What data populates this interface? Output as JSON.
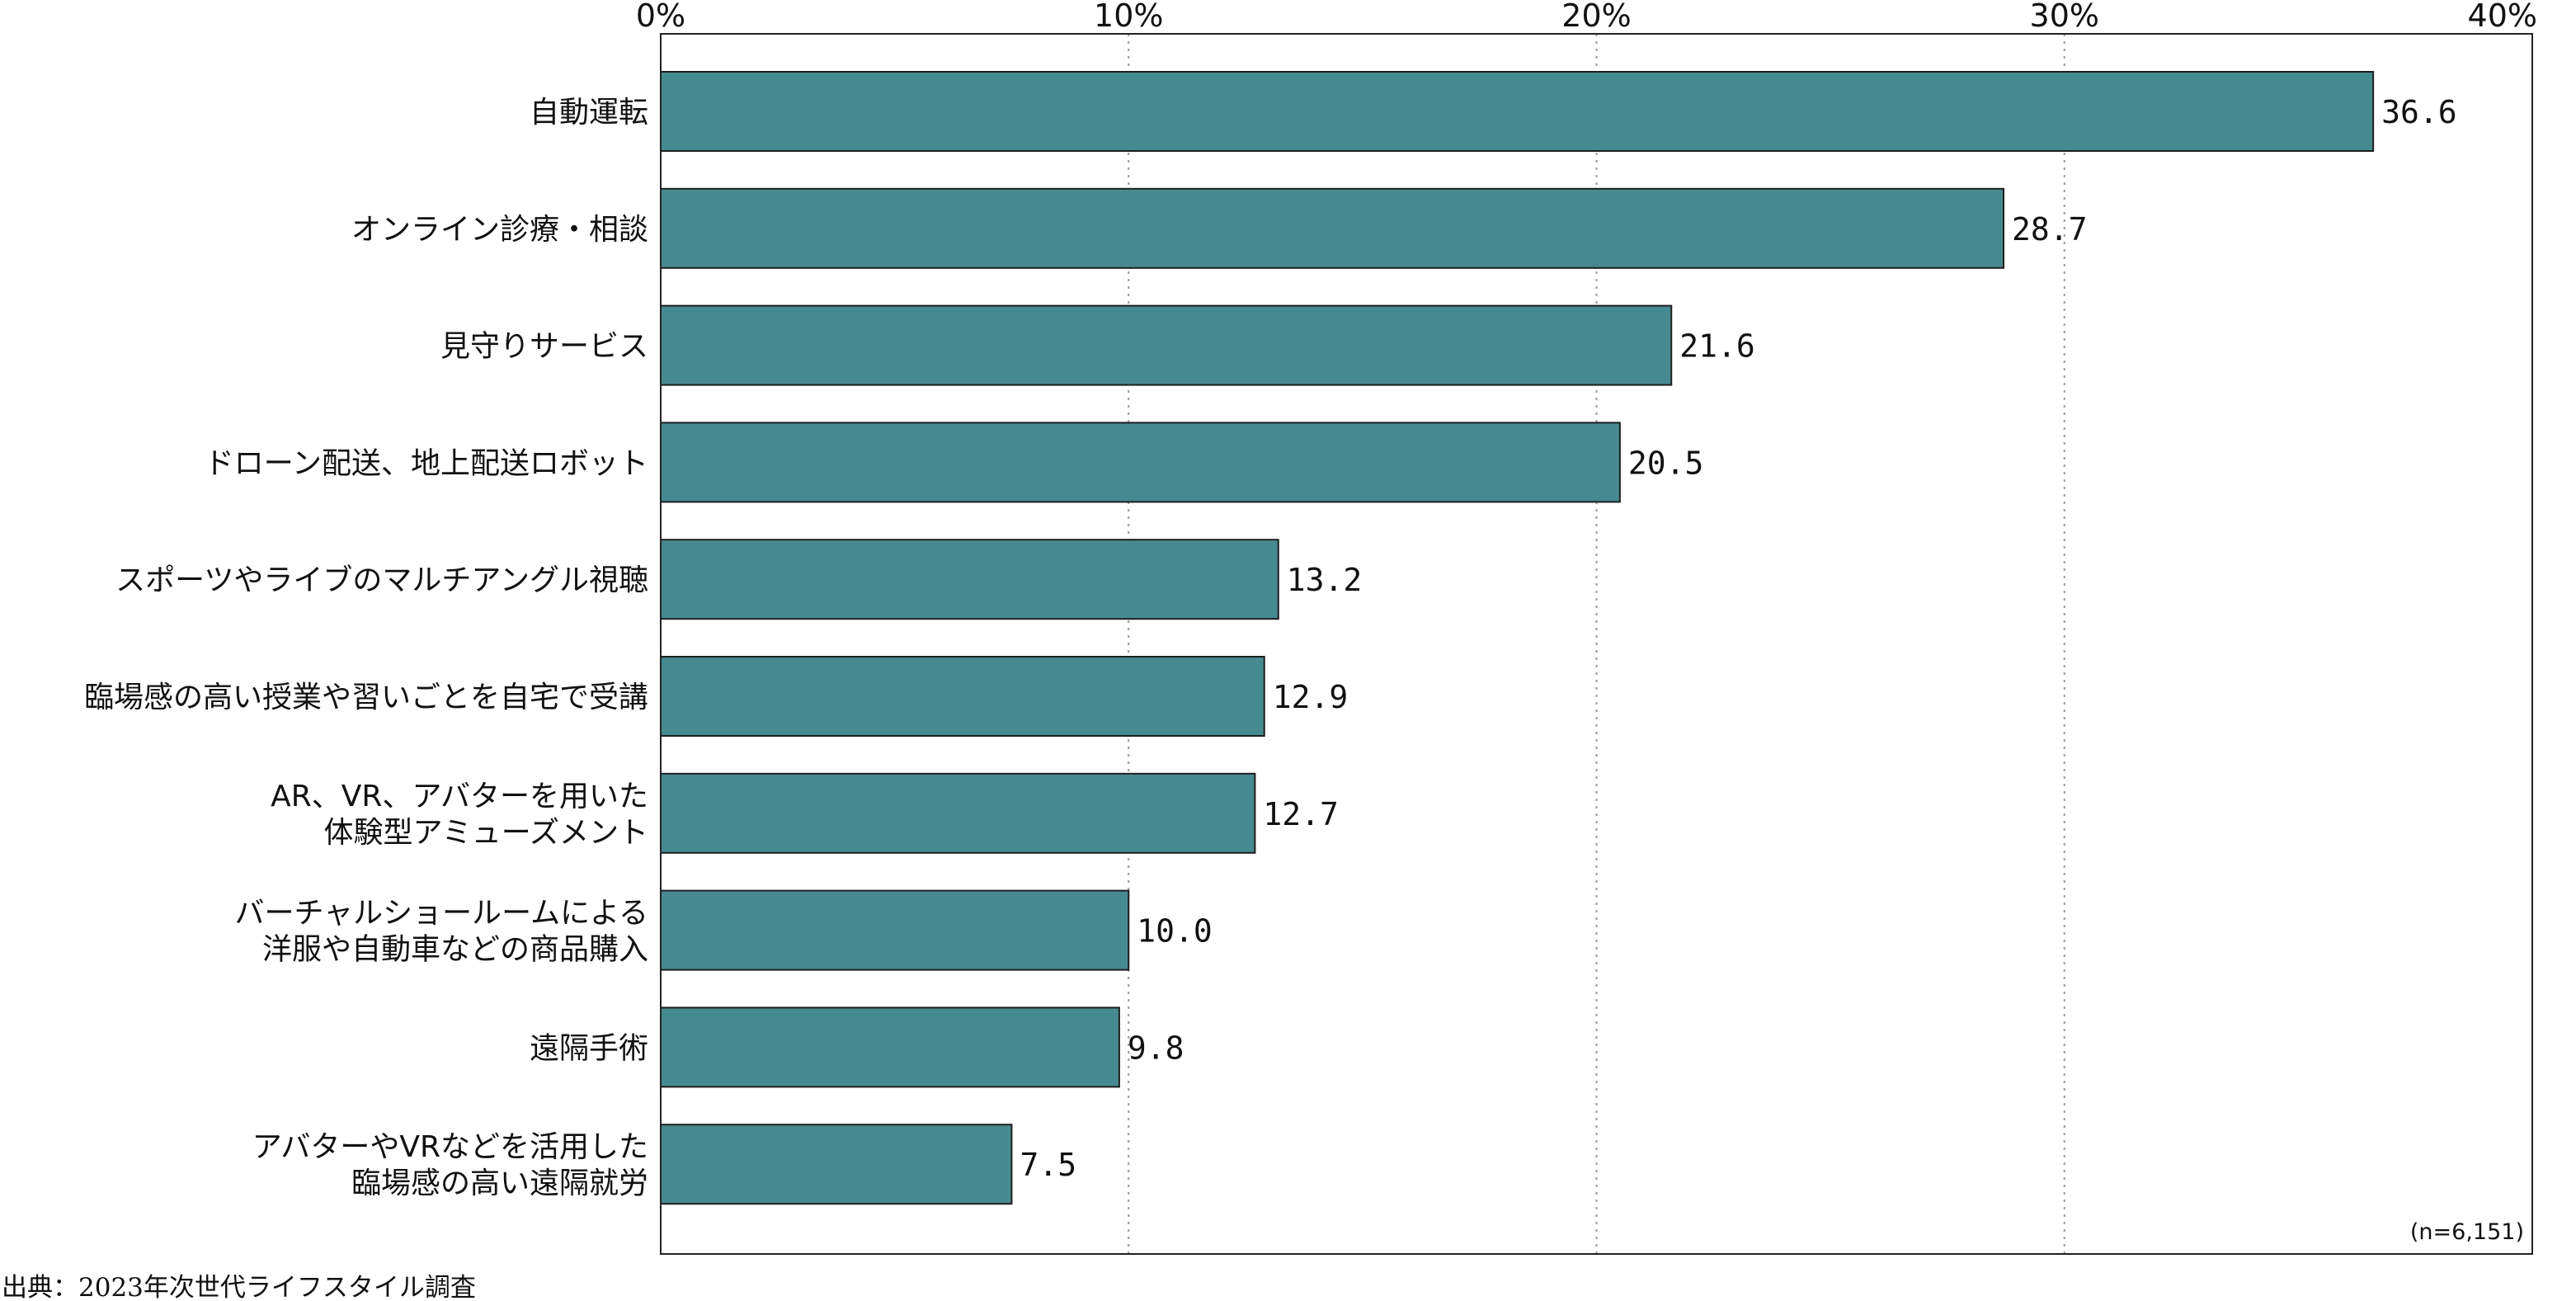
{
  "chart_data": {
    "type": "bar",
    "orientation": "horizontal",
    "categories": [
      [
        "自動運転"
      ],
      [
        "オンライン診療・相談"
      ],
      [
        "見守りサービス"
      ],
      [
        "ドローン配送、地上配送ロボット"
      ],
      [
        "スポーツやライブのマルチアングル視聴"
      ],
      [
        "臨場感の高い授業や習いごとを自宅で受講"
      ],
      [
        "AR、VR、アバターを用いた",
        "体験型アミューズメント"
      ],
      [
        "バーチャルショールームによる",
        "洋服や自動車などの商品購入"
      ],
      [
        "遠隔手術"
      ],
      [
        "アバターやVRなどを活用した",
        "臨場感の高い遠隔就労"
      ]
    ],
    "values": [
      36.6,
      28.7,
      21.6,
      20.5,
      13.2,
      12.9,
      12.7,
      10.0,
      9.8,
      7.5
    ],
    "value_labels": [
      "36.6",
      "28.7",
      "21.6",
      "20.5",
      "13.2",
      "12.9",
      "12.7",
      "10.0",
      "9.8",
      "7.5"
    ],
    "xlim": [
      0,
      40
    ],
    "ticks": [
      0,
      10,
      20,
      30,
      40
    ],
    "tick_labels": [
      "0%",
      "10%",
      "20%",
      "30%",
      "40%"
    ],
    "axis_position": "top",
    "grid": true,
    "bar_color": "#468a91",
    "note": "(n=6,151)",
    "source": "出典：2023年次世代ライフスタイル調査"
  }
}
